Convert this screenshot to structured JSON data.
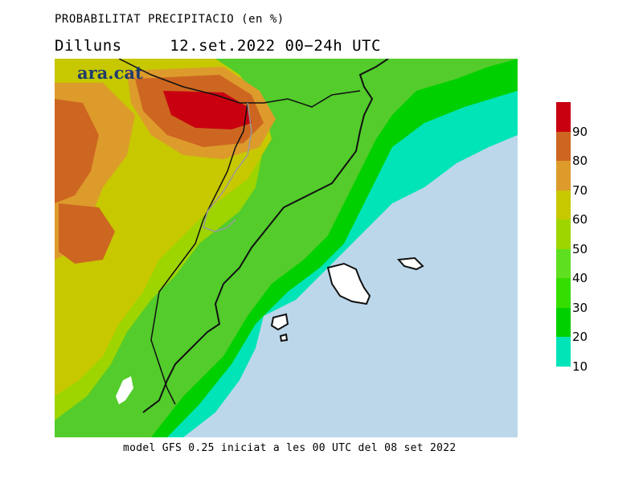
{
  "header": {
    "title": "PROBABILITAT PRECIPITACIO (en %)",
    "subtitle_day": "Dilluns",
    "subtitle_date": "12.set.2022 00−24h UTC"
  },
  "brand": {
    "logo_text": "ara.cat"
  },
  "footer": {
    "text": "model GFS 0.25 iniciat a les 00 UTC del 08 set 2022"
  },
  "legend": {
    "bands": [
      {
        "from": 10,
        "to": 20,
        "color": "#00e4b8"
      },
      {
        "from": 20,
        "to": 30,
        "color": "#00d000"
      },
      {
        "from": 30,
        "to": 40,
        "color": "#36de00"
      },
      {
        "from": 40,
        "to": 50,
        "color": "#5edf1f"
      },
      {
        "from": 50,
        "to": 60,
        "color": "#9ed400"
      },
      {
        "from": 60,
        "to": 70,
        "color": "#c7c800"
      },
      {
        "from": 70,
        "to": 80,
        "color": "#dd9b2c"
      },
      {
        "from": 80,
        "to": 90,
        "color": "#cd6620"
      },
      {
        "from": 90,
        "to": 100,
        "color": "#c80010"
      }
    ],
    "tick_labels": [
      "10",
      "20",
      "30",
      "40",
      "50",
      "60",
      "70",
      "80",
      "90"
    ]
  },
  "colors": {
    "sea": "#bcd7ea",
    "land_background": "#53cc2c",
    "coast": "#111111",
    "border": "#9a9a9a"
  }
}
